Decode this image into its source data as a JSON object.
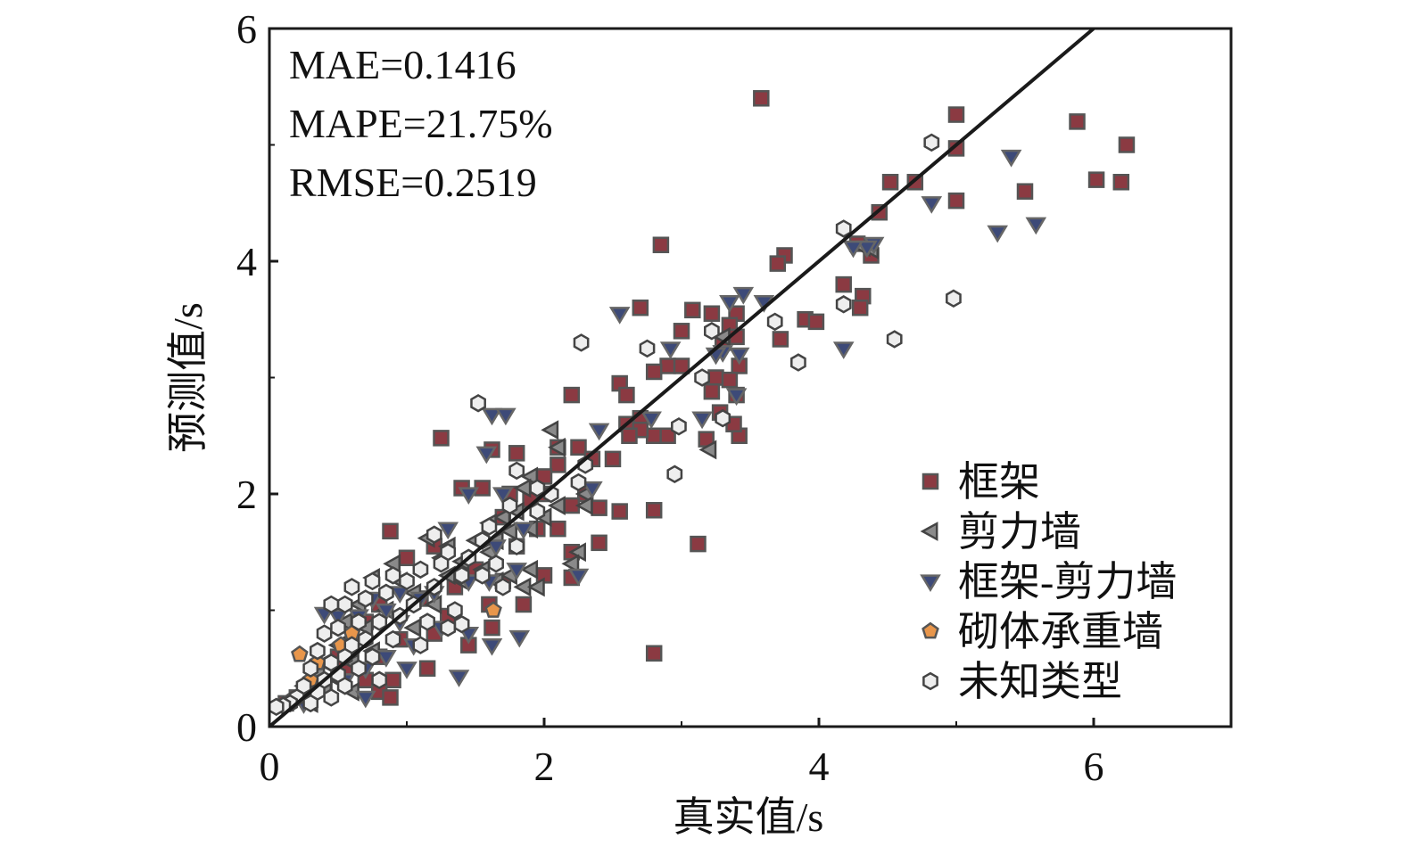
{
  "chart_data": {
    "type": "scatter",
    "xlabel": "真实值/s",
    "ylabel": "预测值/s",
    "xlim": [
      0,
      7
    ],
    "ylim": [
      0,
      6
    ],
    "x_ticks": [
      "0",
      "2",
      "4",
      "6"
    ],
    "y_ticks": [
      "0",
      "2",
      "4",
      "6"
    ],
    "grid": false,
    "legend_position": "bottom-right",
    "annotations": [
      "MAE=0.1416",
      "MAPE=21.75%",
      "RMSE=0.2519"
    ],
    "reference_line": {
      "from": [
        0,
        0
      ],
      "to": [
        6,
        6
      ]
    },
    "series": [
      {
        "name": "框架",
        "marker": "square",
        "fill": "#8b3a42",
        "stroke": "#555555",
        "points": [
          [
            3.58,
            5.4
          ],
          [
            5.0,
            5.26
          ],
          [
            5.88,
            5.2
          ],
          [
            6.24,
            5.0
          ],
          [
            5.0,
            4.97
          ],
          [
            4.52,
            4.68
          ],
          [
            4.7,
            4.68
          ],
          [
            6.02,
            4.7
          ],
          [
            6.2,
            4.68
          ],
          [
            5.5,
            4.6
          ],
          [
            5.0,
            4.52
          ],
          [
            4.44,
            4.42
          ],
          [
            2.85,
            4.14
          ],
          [
            3.75,
            4.05
          ],
          [
            3.7,
            3.98
          ],
          [
            4.38,
            4.05
          ],
          [
            4.28,
            4.15
          ],
          [
            4.18,
            3.8
          ],
          [
            4.32,
            3.7
          ],
          [
            4.3,
            3.6
          ],
          [
            3.9,
            3.5
          ],
          [
            3.98,
            3.48
          ],
          [
            2.7,
            3.6
          ],
          [
            3.08,
            3.58
          ],
          [
            3.22,
            3.55
          ],
          [
            3.4,
            3.55
          ],
          [
            3.35,
            3.45
          ],
          [
            3.4,
            3.35
          ],
          [
            3.3,
            3.3
          ],
          [
            3.72,
            3.33
          ],
          [
            3.0,
            3.4
          ],
          [
            2.9,
            3.1
          ],
          [
            2.8,
            3.05
          ],
          [
            3.0,
            3.1
          ],
          [
            3.42,
            3.1
          ],
          [
            3.25,
            3.0
          ],
          [
            3.35,
            2.98
          ],
          [
            3.22,
            2.88
          ],
          [
            3.4,
            2.85
          ],
          [
            3.28,
            2.7
          ],
          [
            2.55,
            2.95
          ],
          [
            2.6,
            2.85
          ],
          [
            2.7,
            2.65
          ],
          [
            2.6,
            2.6
          ],
          [
            2.8,
            2.5
          ],
          [
            2.9,
            2.5
          ],
          [
            2.7,
            2.55
          ],
          [
            2.62,
            2.5
          ],
          [
            3.18,
            2.47
          ],
          [
            3.42,
            2.5
          ],
          [
            3.38,
            2.6
          ],
          [
            2.2,
            2.85
          ],
          [
            1.25,
            2.48
          ],
          [
            2.1,
            2.4
          ],
          [
            2.25,
            2.4
          ],
          [
            2.35,
            2.3
          ],
          [
            2.1,
            2.25
          ],
          [
            2.0,
            2.15
          ],
          [
            1.8,
            2.35
          ],
          [
            1.62,
            2.38
          ],
          [
            1.4,
            2.05
          ],
          [
            1.55,
            2.05
          ],
          [
            1.75,
            2.0
          ],
          [
            1.9,
            1.95
          ],
          [
            2.3,
            2.0
          ],
          [
            2.5,
            2.3
          ],
          [
            2.0,
            2.0
          ],
          [
            2.2,
            1.9
          ],
          [
            2.4,
            1.88
          ],
          [
            2.55,
            1.85
          ],
          [
            2.8,
            1.86
          ],
          [
            1.7,
            1.8
          ],
          [
            1.95,
            1.7
          ],
          [
            2.1,
            1.7
          ],
          [
            2.4,
            1.58
          ],
          [
            2.2,
            1.5
          ],
          [
            1.8,
            1.55
          ],
          [
            3.12,
            1.57
          ],
          [
            0.88,
            1.68
          ],
          [
            1.0,
            1.45
          ],
          [
            1.2,
            1.55
          ],
          [
            1.5,
            1.35
          ],
          [
            1.7,
            1.25
          ],
          [
            2.0,
            1.3
          ],
          [
            2.2,
            1.28
          ],
          [
            1.35,
            1.2
          ],
          [
            1.1,
            1.1
          ],
          [
            1.6,
            1.05
          ],
          [
            0.8,
            1.05
          ],
          [
            0.7,
            0.9
          ],
          [
            1.2,
            0.8
          ],
          [
            1.45,
            0.7
          ],
          [
            1.62,
            0.85
          ],
          [
            0.6,
            0.7
          ],
          [
            0.8,
            0.6
          ],
          [
            0.5,
            0.6
          ],
          [
            1.15,
            0.5
          ],
          [
            0.9,
            0.4
          ],
          [
            0.7,
            0.4
          ],
          [
            0.4,
            0.35
          ],
          [
            0.3,
            0.3
          ],
          [
            0.8,
            0.3
          ],
          [
            0.2,
            0.25
          ],
          [
            0.88,
            0.25
          ],
          [
            0.12,
            0.2
          ],
          [
            2.8,
            0.63
          ],
          [
            0.55,
            0.5
          ],
          [
            0.95,
            0.75
          ],
          [
            1.3,
            0.95
          ],
          [
            1.85,
            1.05
          ]
        ]
      },
      {
        "name": "剪力墙",
        "marker": "triangle-left",
        "fill": "#8a8a8a",
        "stroke": "#444444",
        "points": [
          [
            4.38,
            4.1
          ],
          [
            4.32,
            4.12
          ],
          [
            3.3,
            3.35
          ],
          [
            3.2,
            2.38
          ],
          [
            2.05,
            2.55
          ],
          [
            2.1,
            2.4
          ],
          [
            1.9,
            2.15
          ],
          [
            1.85,
            2.05
          ],
          [
            2.3,
            2.0
          ],
          [
            2.3,
            1.9
          ],
          [
            2.1,
            1.9
          ],
          [
            1.8,
            1.85
          ],
          [
            1.7,
            1.8
          ],
          [
            1.6,
            1.75
          ],
          [
            1.9,
            1.7
          ],
          [
            1.75,
            1.68
          ],
          [
            1.65,
            1.6
          ],
          [
            1.5,
            1.6
          ],
          [
            1.3,
            1.55
          ],
          [
            1.15,
            1.62
          ],
          [
            1.25,
            1.45
          ],
          [
            1.4,
            1.42
          ],
          [
            1.55,
            1.35
          ],
          [
            2.25,
            1.5
          ],
          [
            2.2,
            1.4
          ],
          [
            1.9,
            1.35
          ],
          [
            1.75,
            1.3
          ],
          [
            1.65,
            1.25
          ],
          [
            1.85,
            1.2
          ],
          [
            1.95,
            1.2
          ],
          [
            0.9,
            1.4
          ],
          [
            0.75,
            1.28
          ],
          [
            0.95,
            1.25
          ],
          [
            1.05,
            1.15
          ],
          [
            0.65,
            1.05
          ],
          [
            0.85,
            1.0
          ],
          [
            1.2,
            1.05
          ],
          [
            0.55,
            0.9
          ],
          [
            0.7,
            0.85
          ],
          [
            1.05,
            0.85
          ],
          [
            0.5,
            0.7
          ],
          [
            0.75,
            0.65
          ],
          [
            0.4,
            0.55
          ],
          [
            0.6,
            0.55
          ],
          [
            0.35,
            0.45
          ],
          [
            0.5,
            0.4
          ],
          [
            0.25,
            0.35
          ],
          [
            0.4,
            0.3
          ],
          [
            0.2,
            0.25
          ],
          [
            0.3,
            0.2
          ],
          [
            0.6,
            0.3
          ],
          [
            1.4,
            1.25
          ],
          [
            1.6,
            1.5
          ],
          [
            1.3,
            1.3
          ],
          [
            2.0,
            1.8
          ]
        ]
      },
      {
        "name": "框架-剪力墙",
        "marker": "triangle-down",
        "fill": "#3d4a78",
        "stroke": "#666666",
        "points": [
          [
            5.4,
            4.9
          ],
          [
            4.82,
            4.5
          ],
          [
            5.3,
            4.25
          ],
          [
            5.58,
            4.32
          ],
          [
            4.4,
            4.15
          ],
          [
            4.35,
            4.12
          ],
          [
            4.25,
            4.12
          ],
          [
            3.45,
            3.72
          ],
          [
            3.35,
            3.65
          ],
          [
            3.6,
            3.65
          ],
          [
            2.55,
            3.55
          ],
          [
            4.18,
            3.25
          ],
          [
            2.92,
            3.25
          ],
          [
            3.3,
            3.22
          ],
          [
            3.42,
            3.2
          ],
          [
            3.25,
            3.2
          ],
          [
            3.4,
            2.85
          ],
          [
            2.78,
            2.65
          ],
          [
            3.15,
            2.65
          ],
          [
            1.62,
            2.68
          ],
          [
            1.72,
            2.68
          ],
          [
            2.4,
            2.55
          ],
          [
            1.58,
            2.35
          ],
          [
            1.45,
            2.0
          ],
          [
            1.7,
            2.0
          ],
          [
            2.35,
            2.05
          ],
          [
            1.3,
            1.7
          ],
          [
            1.85,
            1.7
          ],
          [
            1.65,
            1.55
          ],
          [
            1.8,
            1.35
          ],
          [
            2.25,
            1.3
          ],
          [
            1.45,
            1.25
          ],
          [
            1.6,
            1.25
          ],
          [
            1.2,
            1.15
          ],
          [
            1.1,
            1.1
          ],
          [
            0.95,
            1.15
          ],
          [
            0.75,
            1.1
          ],
          [
            0.85,
            1.0
          ],
          [
            0.4,
            0.97
          ],
          [
            0.5,
            0.95
          ],
          [
            0.65,
            0.95
          ],
          [
            0.95,
            0.9
          ],
          [
            1.25,
            0.85
          ],
          [
            1.45,
            0.8
          ],
          [
            1.62,
            0.7
          ],
          [
            1.82,
            0.77
          ],
          [
            1.05,
            0.7
          ],
          [
            0.85,
            0.6
          ],
          [
            1.0,
            0.5
          ],
          [
            1.38,
            0.43
          ],
          [
            0.7,
            0.5
          ],
          [
            0.55,
            0.4
          ],
          [
            0.35,
            0.35
          ],
          [
            0.7,
            0.25
          ],
          [
            0.25,
            0.2
          ]
        ]
      },
      {
        "name": "砌体承重墙",
        "marker": "pentagon",
        "fill": "#e8964b",
        "stroke": "#555555",
        "points": [
          [
            0.22,
            0.62
          ],
          [
            1.63,
            1.0
          ],
          [
            0.52,
            0.7
          ],
          [
            0.3,
            0.4
          ],
          [
            0.15,
            0.22
          ],
          [
            0.35,
            0.55
          ],
          [
            0.6,
            0.8
          ]
        ]
      },
      {
        "name": "未知类型",
        "marker": "hexagon",
        "fill": "#eeeeee",
        "stroke": "#444444",
        "points": [
          [
            4.82,
            5.02
          ],
          [
            4.18,
            4.28
          ],
          [
            4.98,
            3.68
          ],
          [
            4.55,
            3.33
          ],
          [
            3.85,
            3.13
          ],
          [
            3.68,
            3.48
          ],
          [
            4.18,
            3.63
          ],
          [
            2.27,
            3.3
          ],
          [
            2.75,
            3.25
          ],
          [
            3.22,
            3.4
          ],
          [
            3.3,
            2.65
          ],
          [
            2.98,
            2.58
          ],
          [
            3.15,
            3.0
          ],
          [
            1.52,
            2.78
          ],
          [
            2.95,
            2.17
          ],
          [
            2.3,
            2.25
          ],
          [
            1.8,
            2.2
          ],
          [
            2.05,
            2.0
          ],
          [
            1.95,
            2.05
          ],
          [
            1.75,
            1.9
          ],
          [
            1.6,
            1.72
          ],
          [
            1.8,
            1.55
          ],
          [
            1.55,
            1.6
          ],
          [
            1.45,
            1.45
          ],
          [
            1.3,
            1.5
          ],
          [
            1.4,
            1.3
          ],
          [
            1.25,
            1.4
          ],
          [
            1.1,
            1.35
          ],
          [
            1.2,
            1.2
          ],
          [
            1.0,
            1.25
          ],
          [
            0.9,
            1.3
          ],
          [
            0.75,
            1.25
          ],
          [
            0.6,
            1.2
          ],
          [
            0.7,
            1.1
          ],
          [
            0.55,
            1.05
          ],
          [
            0.45,
            1.05
          ],
          [
            0.85,
            1.15
          ],
          [
            1.05,
            1.05
          ],
          [
            0.95,
            0.95
          ],
          [
            0.8,
            0.9
          ],
          [
            0.65,
            0.9
          ],
          [
            0.5,
            0.85
          ],
          [
            0.4,
            0.8
          ],
          [
            0.7,
            0.75
          ],
          [
            0.9,
            0.75
          ],
          [
            0.6,
            0.7
          ],
          [
            0.35,
            0.65
          ],
          [
            0.55,
            0.6
          ],
          [
            0.75,
            0.6
          ],
          [
            0.45,
            0.55
          ],
          [
            0.3,
            0.5
          ],
          [
            0.65,
            0.5
          ],
          [
            0.5,
            0.45
          ],
          [
            0.4,
            0.4
          ],
          [
            0.25,
            0.35
          ],
          [
            0.55,
            0.35
          ],
          [
            0.35,
            0.3
          ],
          [
            0.2,
            0.25
          ],
          [
            0.45,
            0.25
          ],
          [
            0.15,
            0.2
          ],
          [
            0.3,
            0.2
          ],
          [
            0.1,
            0.18
          ],
          [
            0.05,
            0.17
          ],
          [
            1.7,
            1.2
          ],
          [
            1.35,
            1.0
          ],
          [
            1.15,
            0.9
          ],
          [
            1.4,
            0.88
          ],
          [
            1.55,
            1.3
          ],
          [
            1.65,
            1.4
          ],
          [
            1.2,
            1.65
          ],
          [
            2.25,
            2.1
          ],
          [
            1.95,
            1.85
          ],
          [
            1.3,
            0.85
          ],
          [
            1.1,
            0.7
          ],
          [
            0.8,
            0.4
          ]
        ]
      }
    ]
  }
}
